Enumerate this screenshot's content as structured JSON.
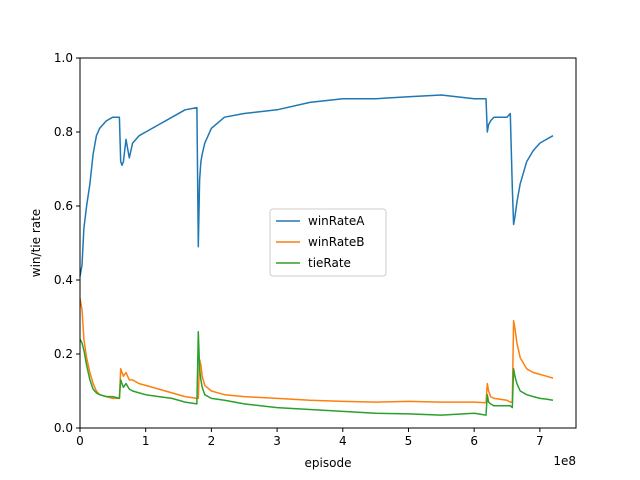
{
  "chart_data": {
    "type": "line",
    "title": "",
    "xlabel": "episode",
    "ylabel": "win/tie rate",
    "x_offset_label": "1e8",
    "xlim": [
      0,
      7.55
    ],
    "ylim": [
      0,
      1.0
    ],
    "x_ticks": [
      0,
      1,
      2,
      3,
      4,
      5,
      6,
      7
    ],
    "x_tick_labels": [
      "0",
      "1",
      "2",
      "3",
      "4",
      "5",
      "6",
      "7"
    ],
    "y_ticks": [
      0,
      0.2,
      0.4,
      0.6,
      0.8,
      1.0
    ],
    "y_tick_labels": [
      "0.0",
      "0.2",
      "0.4",
      "0.6",
      "0.8",
      "1.0"
    ],
    "grid": false,
    "legend_position": "center",
    "x": [
      0,
      0.03,
      0.06,
      0.1,
      0.15,
      0.2,
      0.25,
      0.3,
      0.4,
      0.5,
      0.6,
      0.62,
      0.64,
      0.66,
      0.7,
      0.75,
      0.8,
      0.9,
      1.0,
      1.2,
      1.4,
      1.6,
      1.78,
      1.8,
      1.82,
      1.84,
      1.86,
      1.9,
      2.0,
      2.2,
      2.5,
      3.0,
      3.5,
      4.0,
      4.5,
      5.0,
      5.5,
      6.0,
      6.18,
      6.2,
      6.22,
      6.25,
      6.3,
      6.5,
      6.55,
      6.58,
      6.6,
      6.62,
      6.65,
      6.7,
      6.8,
      6.9,
      7.0,
      7.1,
      7.2
    ],
    "series": [
      {
        "name": "winRateA",
        "color": "#1f77b4",
        "values": [
          0.41,
          0.44,
          0.54,
          0.6,
          0.66,
          0.74,
          0.79,
          0.81,
          0.83,
          0.84,
          0.84,
          0.72,
          0.71,
          0.72,
          0.78,
          0.73,
          0.77,
          0.79,
          0.8,
          0.82,
          0.84,
          0.86,
          0.866,
          0.49,
          0.67,
          0.72,
          0.74,
          0.77,
          0.81,
          0.84,
          0.85,
          0.86,
          0.88,
          0.89,
          0.89,
          0.895,
          0.9,
          0.89,
          0.89,
          0.8,
          0.82,
          0.83,
          0.84,
          0.84,
          0.85,
          0.65,
          0.55,
          0.57,
          0.61,
          0.66,
          0.72,
          0.75,
          0.77,
          0.78,
          0.79
        ]
      },
      {
        "name": "winRateB",
        "color": "#ff7f0e",
        "values": [
          0.35,
          0.32,
          0.24,
          0.19,
          0.15,
          0.12,
          0.1,
          0.09,
          0.085,
          0.08,
          0.08,
          0.16,
          0.15,
          0.14,
          0.15,
          0.13,
          0.13,
          0.12,
          0.115,
          0.105,
          0.095,
          0.085,
          0.08,
          0.08,
          0.185,
          0.17,
          0.14,
          0.115,
          0.1,
          0.09,
          0.085,
          0.08,
          0.075,
          0.072,
          0.07,
          0.072,
          0.07,
          0.07,
          0.068,
          0.12,
          0.1,
          0.085,
          0.08,
          0.075,
          0.07,
          0.07,
          0.29,
          0.27,
          0.23,
          0.19,
          0.16,
          0.15,
          0.145,
          0.14,
          0.135
        ]
      },
      {
        "name": "tieRate",
        "color": "#2ca02c",
        "values": [
          0.24,
          0.23,
          0.21,
          0.17,
          0.13,
          0.105,
          0.095,
          0.09,
          0.085,
          0.085,
          0.08,
          0.13,
          0.12,
          0.11,
          0.12,
          0.105,
          0.1,
          0.095,
          0.09,
          0.085,
          0.08,
          0.07,
          0.065,
          0.26,
          0.16,
          0.13,
          0.11,
          0.09,
          0.08,
          0.075,
          0.065,
          0.055,
          0.05,
          0.045,
          0.04,
          0.038,
          0.035,
          0.04,
          0.035,
          0.09,
          0.07,
          0.065,
          0.06,
          0.06,
          0.06,
          0.055,
          0.16,
          0.14,
          0.12,
          0.1,
          0.09,
          0.085,
          0.08,
          0.078,
          0.075
        ]
      }
    ]
  }
}
